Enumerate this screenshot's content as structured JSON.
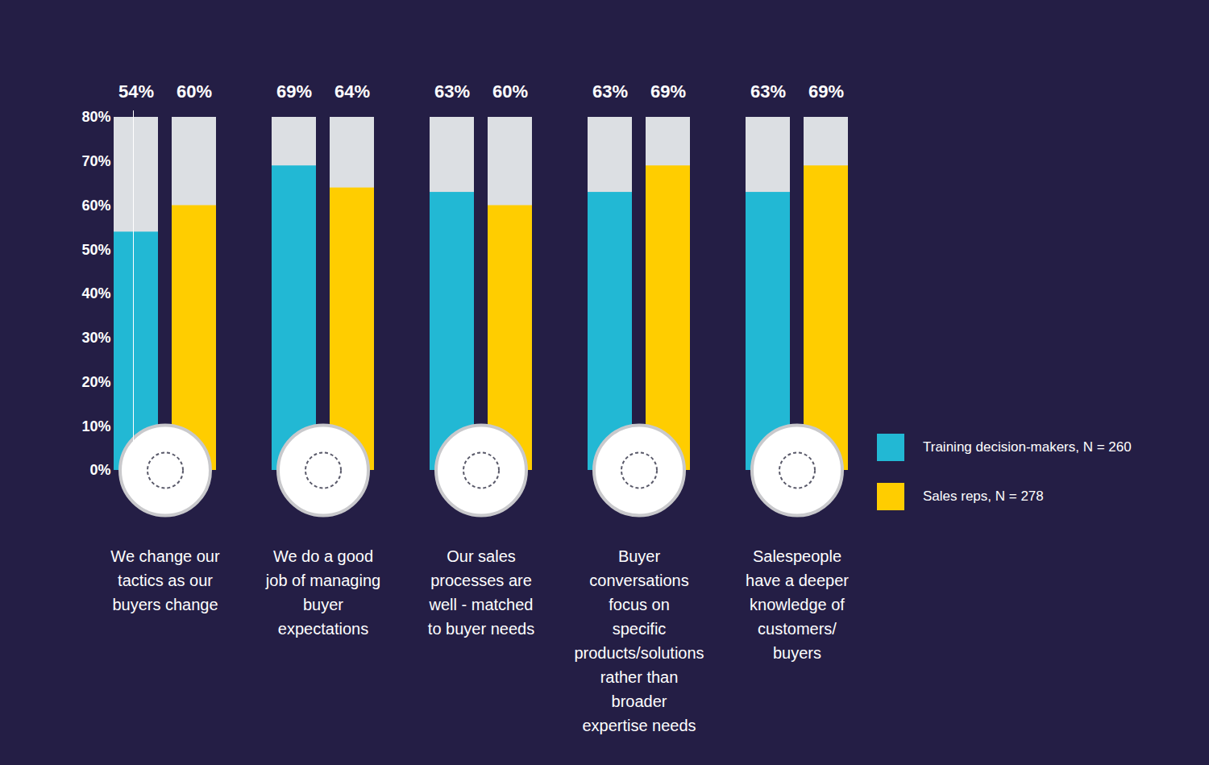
{
  "chart_data": {
    "type": "bar",
    "categories": [
      "We change our tactics as our buyers change",
      "We do a good job of managing buyer expectations",
      "Our sales processes are well - matched to buyer needs",
      "Buyer conversations focus on specific products/solutions rather than broader expertise needs",
      "Salespeople have a deeper knowledge of customers/ buyers"
    ],
    "series": [
      {
        "name": "Training decision-makers, N = 260",
        "color": "#22b8d4",
        "values": [
          54,
          69,
          63,
          63,
          63
        ],
        "value_labels": [
          "54%",
          "69%",
          "63%",
          "63%",
          "63%"
        ]
      },
      {
        "name": "Sales reps, N = 278",
        "color": "#ffcd00",
        "values": [
          60,
          64,
          60,
          69,
          69
        ],
        "value_labels": [
          "60%",
          "64%",
          "60%",
          "69%",
          "69%"
        ]
      }
    ],
    "ylim": [
      0,
      80
    ],
    "yticks": [
      {
        "value": 0,
        "label": "0%"
      },
      {
        "value": 10,
        "label": "10%"
      },
      {
        "value": 20,
        "label": "20%"
      },
      {
        "value": 30,
        "label": "30%"
      },
      {
        "value": 40,
        "label": "40%"
      },
      {
        "value": 50,
        "label": "50%"
      },
      {
        "value": 60,
        "label": "60%"
      },
      {
        "value": 70,
        "label": "70%"
      },
      {
        "value": 80,
        "label": "80%"
      }
    ],
    "data_labels": true,
    "legend": "right",
    "grid": false
  }
}
